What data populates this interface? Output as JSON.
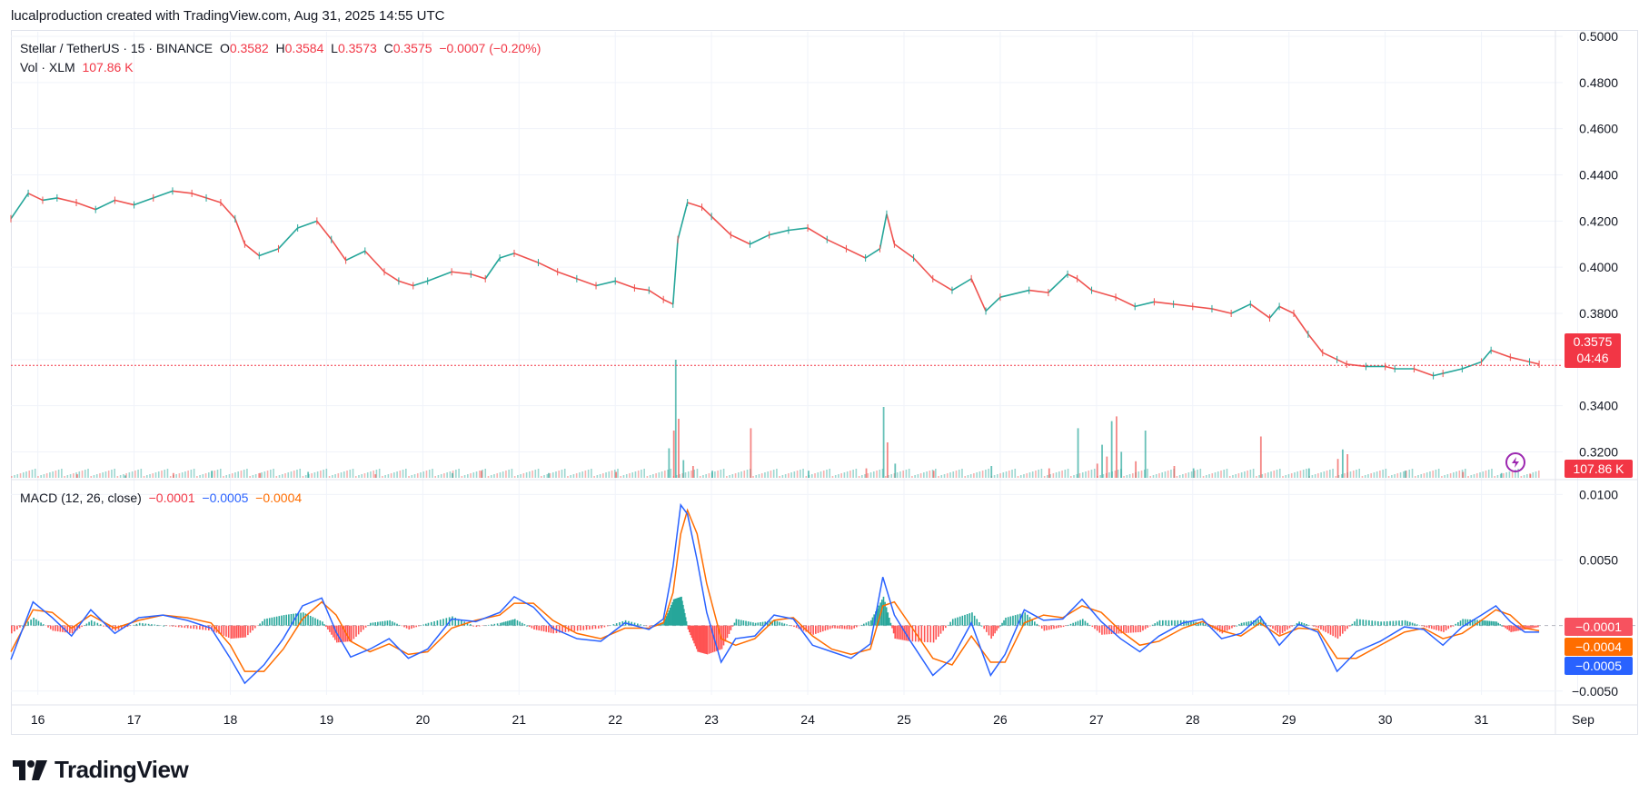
{
  "header": {
    "attribution": "lucalproduction created with TradingView.com, Aug 31, 2025 14:55 UTC"
  },
  "legend": {
    "symbol": "Stellar / TetherUS · 15 · BINANCE",
    "o_label": "O",
    "o": "0.3582",
    "h_label": "H",
    "h": "0.3584",
    "l_label": "L",
    "l": "0.3573",
    "c_label": "C",
    "c": "0.3575",
    "change": "−0.0007 (−0.20%)",
    "vol_label": "Vol · XLM",
    "vol": "107.86 K",
    "macd_label": "MACD (12, 26, close)",
    "macd_hist": "−0.0001",
    "macd_line": "−0.0005",
    "macd_signal": "−0.0004"
  },
  "badges": {
    "price": "0.3575",
    "countdown": "04:46",
    "volume": "107.86 K",
    "macd_hist": "−0.0001",
    "macd_signal": "−0.0004",
    "macd_line": "−0.0005"
  },
  "brand": {
    "name": "TradingView"
  },
  "colors": {
    "up": "#26a69a",
    "down": "#ef5350",
    "macd": "#2962ff",
    "signal": "#ff6d00",
    "price_line": "#f23645"
  },
  "chart_data": [
    {
      "type": "line",
      "title": "Stellar / TetherUS · 15 · BINANCE",
      "description_series": "close price (approximate, read from chart)",
      "x_ticks": [
        "16",
        "17",
        "18",
        "19",
        "20",
        "21",
        "22",
        "23",
        "24",
        "25",
        "26",
        "27",
        "28",
        "29",
        "30",
        "31",
        "Sep"
      ],
      "y_ticks": [
        "0.5000",
        "0.4800",
        "0.4600",
        "0.4400",
        "0.4200",
        "0.4000",
        "0.3800",
        "0.3600",
        "0.3400",
        "0.3200"
      ],
      "ylim": [
        0.308,
        0.5
      ],
      "x": [
        15.72,
        15.9,
        16.05,
        16.2,
        16.4,
        16.6,
        16.8,
        17.0,
        17.2,
        17.4,
        17.6,
        17.75,
        17.9,
        18.05,
        18.15,
        18.3,
        18.5,
        18.7,
        18.9,
        19.05,
        19.2,
        19.4,
        19.6,
        19.75,
        19.9,
        20.05,
        20.3,
        20.5,
        20.65,
        20.8,
        20.95,
        21.2,
        21.4,
        21.6,
        21.8,
        22.0,
        22.2,
        22.35,
        22.5,
        22.6,
        22.65,
        22.75,
        22.9,
        23.0,
        23.2,
        23.4,
        23.6,
        23.8,
        24.0,
        24.2,
        24.4,
        24.6,
        24.75,
        24.82,
        24.9,
        25.1,
        25.3,
        25.5,
        25.7,
        25.85,
        26.0,
        26.3,
        26.5,
        26.7,
        26.8,
        26.95,
        27.2,
        27.4,
        27.6,
        27.8,
        28.0,
        28.2,
        28.4,
        28.6,
        28.8,
        28.9,
        29.05,
        29.2,
        29.35,
        29.5,
        29.6,
        29.8,
        30.0,
        30.1,
        30.3,
        30.5,
        30.6,
        30.8,
        31.0,
        31.1,
        31.3,
        31.5,
        31.6
      ],
      "series": [
        {
          "values": [
            0.421,
            0.432,
            0.429,
            0.43,
            0.428,
            0.425,
            0.429,
            0.427,
            0.43,
            0.433,
            0.432,
            0.43,
            0.428,
            0.421,
            0.41,
            0.405,
            0.408,
            0.417,
            0.42,
            0.412,
            0.403,
            0.407,
            0.398,
            0.394,
            0.392,
            0.394,
            0.398,
            0.397,
            0.395,
            0.404,
            0.406,
            0.402,
            0.398,
            0.395,
            0.392,
            0.394,
            0.391,
            0.39,
            0.386,
            0.384,
            0.412,
            0.428,
            0.426,
            0.422,
            0.414,
            0.41,
            0.414,
            0.416,
            0.417,
            0.412,
            0.408,
            0.404,
            0.408,
            0.423,
            0.41,
            0.404,
            0.395,
            0.39,
            0.395,
            0.381,
            0.387,
            0.39,
            0.389,
            0.397,
            0.395,
            0.39,
            0.387,
            0.383,
            0.385,
            0.384,
            0.383,
            0.382,
            0.38,
            0.384,
            0.378,
            0.383,
            0.38,
            0.371,
            0.363,
            0.36,
            0.358,
            0.357,
            0.357,
            0.356,
            0.356,
            0.353,
            0.354,
            0.356,
            0.359,
            0.364,
            0.361,
            0.359,
            0.358
          ]
        }
      ]
    },
    {
      "type": "bar",
      "title": "Vol · XLM",
      "x": [
        16.4,
        16.9,
        17.4,
        17.8,
        18.3,
        18.8,
        19.5,
        20.3,
        20.6,
        21.3,
        22.0,
        22.55,
        22.6,
        22.62,
        22.65,
        22.7,
        22.8,
        23.0,
        23.4,
        24.0,
        24.6,
        24.78,
        24.82,
        24.9,
        25.3,
        25.9,
        26.5,
        26.8,
        27.0,
        27.05,
        27.1,
        27.15,
        27.2,
        27.25,
        27.4,
        27.5,
        27.8,
        28.0,
        28.7,
        29.2,
        29.5,
        29.55,
        29.6,
        30.2,
        30.8,
        31.2,
        31.5
      ],
      "values": [
        3,
        2,
        4,
        6,
        4,
        5,
        3,
        4,
        6,
        4,
        5,
        25,
        40,
        100,
        50,
        15,
        10,
        6,
        42,
        6,
        8,
        60,
        30,
        12,
        6,
        10,
        8,
        42,
        12,
        28,
        18,
        48,
        52,
        22,
        14,
        40,
        10,
        8,
        35,
        8,
        16,
        24,
        20,
        6,
        5,
        4,
        3
      ],
      "ylim": [
        0,
        100
      ]
    },
    {
      "type": "line",
      "title": "MACD (12, 26, close)",
      "y_ticks": [
        "0.0100",
        "0.0050",
        "−0.0050"
      ],
      "ylim": [
        -0.0055,
        0.0103
      ],
      "x": [
        15.72,
        15.95,
        16.15,
        16.35,
        16.55,
        16.8,
        17.05,
        17.3,
        17.55,
        17.8,
        18.0,
        18.15,
        18.35,
        18.55,
        18.75,
        18.95,
        19.1,
        19.25,
        19.45,
        19.65,
        19.85,
        20.05,
        20.3,
        20.55,
        20.8,
        20.95,
        21.15,
        21.35,
        21.6,
        21.85,
        22.1,
        22.35,
        22.5,
        22.6,
        22.68,
        22.75,
        22.85,
        22.95,
        23.1,
        23.25,
        23.45,
        23.65,
        23.85,
        24.05,
        24.25,
        24.45,
        24.65,
        24.78,
        24.9,
        25.05,
        25.3,
        25.5,
        25.7,
        25.9,
        26.05,
        26.25,
        26.45,
        26.65,
        26.85,
        27.05,
        27.25,
        27.45,
        27.65,
        27.9,
        28.1,
        28.3,
        28.5,
        28.7,
        28.9,
        29.1,
        29.3,
        29.5,
        29.7,
        29.95,
        30.2,
        30.4,
        30.6,
        30.8,
        31.0,
        31.15,
        31.3,
        31.45,
        31.6
      ],
      "series": [
        {
          "name": "MACD",
          "values": [
            -0.0026,
            0.0018,
            0.0006,
            -0.0008,
            0.0012,
            -0.0006,
            0.0006,
            0.0008,
            0.0004,
            -0.0002,
            -0.0025,
            -0.0044,
            -0.003,
            -0.001,
            0.0015,
            0.0021,
            -0.0005,
            -0.0024,
            -0.0018,
            -0.001,
            -0.0025,
            -0.0018,
            0.0005,
            0.0003,
            0.001,
            0.0022,
            0.0014,
            -0.0002,
            -0.001,
            -0.0012,
            0.0002,
            -0.0003,
            0.0005,
            0.0045,
            0.0092,
            0.0085,
            0.005,
            0.001,
            -0.0028,
            -0.001,
            -0.0008,
            0.0008,
            0.0005,
            -0.0015,
            -0.002,
            -0.0025,
            -0.0014,
            0.0037,
            0.0008,
            -0.001,
            -0.0038,
            -0.0025,
            0.0002,
            -0.0038,
            -0.0022,
            0.0012,
            0.0004,
            0.0005,
            0.002,
            0.0003,
            -0.001,
            -0.002,
            -0.0008,
            0.0002,
            0.0005,
            -0.001,
            -0.0006,
            0.0007,
            -0.0015,
            0.0001,
            -0.0005,
            -0.0035,
            -0.002,
            -0.0012,
            -0.0001,
            -0.0003,
            -0.0015,
            -0.0001,
            0.0008,
            0.0015,
            0.0003,
            -0.0005,
            -0.0005
          ]
        },
        {
          "name": "Signal",
          "values": [
            -0.002,
            0.0012,
            0.001,
            -0.0002,
            0.0008,
            -0.0002,
            0.0004,
            0.0008,
            0.0006,
            0.0002,
            -0.0015,
            -0.0035,
            -0.0035,
            -0.0018,
            0.0005,
            0.0018,
            0.0008,
            -0.0012,
            -0.002,
            -0.0014,
            -0.0022,
            -0.002,
            -0.0002,
            0.0004,
            0.0008,
            0.0017,
            0.0017,
            0.0004,
            -0.0006,
            -0.001,
            -0.0002,
            -0.0002,
            0.0002,
            0.0025,
            0.007,
            0.0088,
            0.007,
            0.0032,
            -0.001,
            -0.0015,
            -0.001,
            0.0004,
            0.0006,
            -0.0008,
            -0.0018,
            -0.0022,
            -0.0018,
            0.0015,
            0.0018,
            0.0002,
            -0.0025,
            -0.003,
            -0.0008,
            -0.0028,
            -0.0028,
            0.0002,
            0.0008,
            0.0006,
            0.0015,
            0.001,
            -0.0004,
            -0.0015,
            -0.0012,
            -0.0002,
            0.0003,
            -0.0004,
            -0.0008,
            0.0002,
            -0.0008,
            -0.0002,
            -0.0003,
            -0.0025,
            -0.0025,
            -0.0015,
            -0.0005,
            -0.0002,
            -0.001,
            -0.0006,
            0.0004,
            0.0012,
            0.0008,
            -0.0002,
            -0.0004
          ]
        }
      ]
    }
  ]
}
